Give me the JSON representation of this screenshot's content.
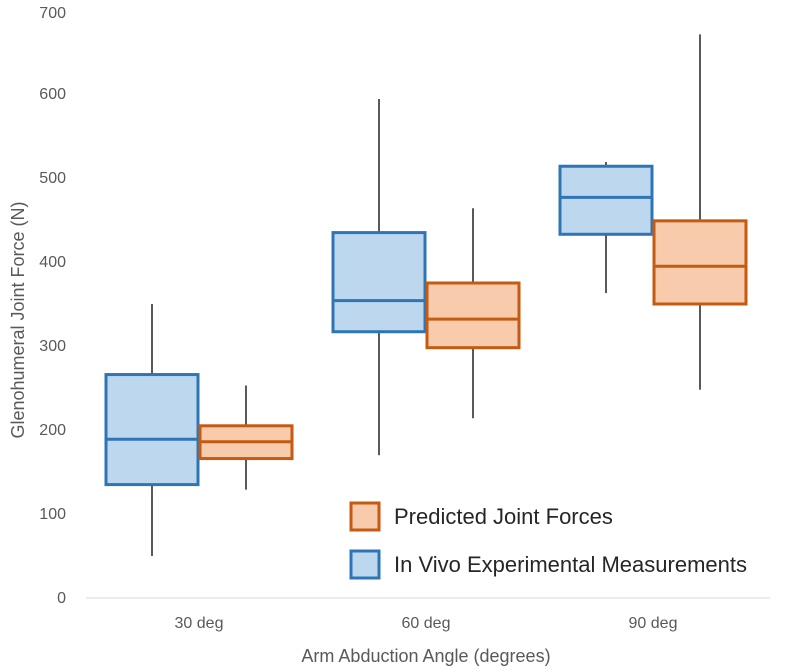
{
  "chart_data": {
    "type": "boxplot",
    "title": "",
    "xlabel": "Arm Abduction Angle (degrees)",
    "ylabel": "Glenohumeral Joint  Force (N)",
    "ylim": [
      0,
      700
    ],
    "yticks": [
      0,
      100,
      200,
      300,
      400,
      500,
      600,
      700
    ],
    "grid": false,
    "legend_position": "bottom-right",
    "categories": [
      "30 deg",
      "60 deg",
      "90 deg"
    ],
    "series": [
      {
        "name": "In Vivo Experimental Measurements",
        "fill": "#bdd7ee",
        "stroke": "#2e75b6",
        "boxes": [
          {
            "min": 50,
            "q1": 135,
            "median": 189,
            "q3": 266,
            "max": 350
          },
          {
            "min": 170,
            "q1": 317,
            "median": 354,
            "q3": 435,
            "max": 594
          },
          {
            "min": 363,
            "q1": 433,
            "median": 477,
            "q3": 514,
            "max": 519
          }
        ]
      },
      {
        "name": "Predicted Joint Forces",
        "fill": "#f8cbad",
        "stroke": "#c55a11",
        "boxes": [
          {
            "min": 129,
            "q1": 166,
            "median": 186,
            "q3": 205,
            "max": 253
          },
          {
            "min": 214,
            "q1": 298,
            "median": 332,
            "q3": 375,
            "max": 464
          },
          {
            "min": 248,
            "q1": 350,
            "median": 395,
            "q3": 449,
            "max": 671
          }
        ]
      }
    ],
    "legend_order": [
      1,
      0
    ],
    "whisker_color": "#595959"
  }
}
